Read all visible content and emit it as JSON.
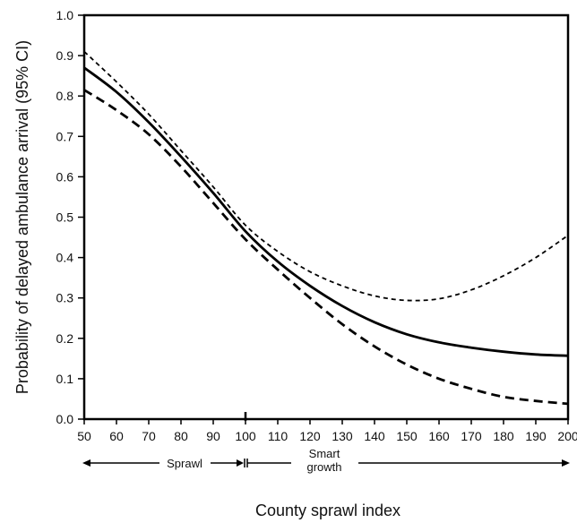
{
  "chart_data": {
    "type": "line",
    "title": "",
    "xlabel": "County sprawl index",
    "ylabel": "Probability of delayed ambulance arrival (95% CI)",
    "xlim": [
      50,
      200
    ],
    "ylim": [
      0.0,
      1.0
    ],
    "x_ticks": [
      "50",
      "60",
      "70",
      "80",
      "90",
      "100",
      "110",
      "120",
      "130",
      "140",
      "150",
      "160",
      "170",
      "180",
      "190",
      "200"
    ],
    "y_ticks": [
      "0.0",
      "0.1",
      "0.2",
      "0.3",
      "0.4",
      "0.5",
      "0.6",
      "0.7",
      "0.8",
      "0.9",
      "1.0"
    ],
    "grid": false,
    "legend": "none",
    "series": [
      {
        "style": "solid",
        "x": [
          50,
          60,
          70,
          80,
          90,
          100,
          110,
          120,
          130,
          140,
          150,
          160,
          170,
          180,
          190,
          200
        ],
        "y": [
          0.87,
          0.81,
          0.735,
          0.65,
          0.56,
          0.465,
          0.39,
          0.33,
          0.28,
          0.24,
          0.21,
          0.19,
          0.177,
          0.167,
          0.16,
          0.157
        ]
      },
      {
        "style": "dashed-thin",
        "x": [
          50,
          60,
          70,
          80,
          90,
          100,
          110,
          120,
          130,
          140,
          150,
          160,
          170,
          180,
          190,
          200
        ],
        "y": [
          0.91,
          0.835,
          0.755,
          0.665,
          0.575,
          0.48,
          0.415,
          0.365,
          0.33,
          0.305,
          0.294,
          0.298,
          0.32,
          0.355,
          0.4,
          0.455
        ]
      },
      {
        "style": "dashed-thick",
        "x": [
          50,
          60,
          70,
          80,
          90,
          100,
          110,
          120,
          130,
          140,
          150,
          160,
          170,
          180,
          190,
          200
        ],
        "y": [
          0.815,
          0.765,
          0.705,
          0.625,
          0.535,
          0.445,
          0.37,
          0.3,
          0.235,
          0.18,
          0.135,
          0.1,
          0.075,
          0.055,
          0.045,
          0.038
        ]
      }
    ],
    "annotations": {
      "divider_x": 100,
      "sprawl_label": "Sprawl",
      "smart_growth_label_line1": "Smart",
      "smart_growth_label_line2": "growth"
    },
    "colors": {
      "line": "#000000",
      "axis": "#000000",
      "text": "#111111"
    }
  }
}
